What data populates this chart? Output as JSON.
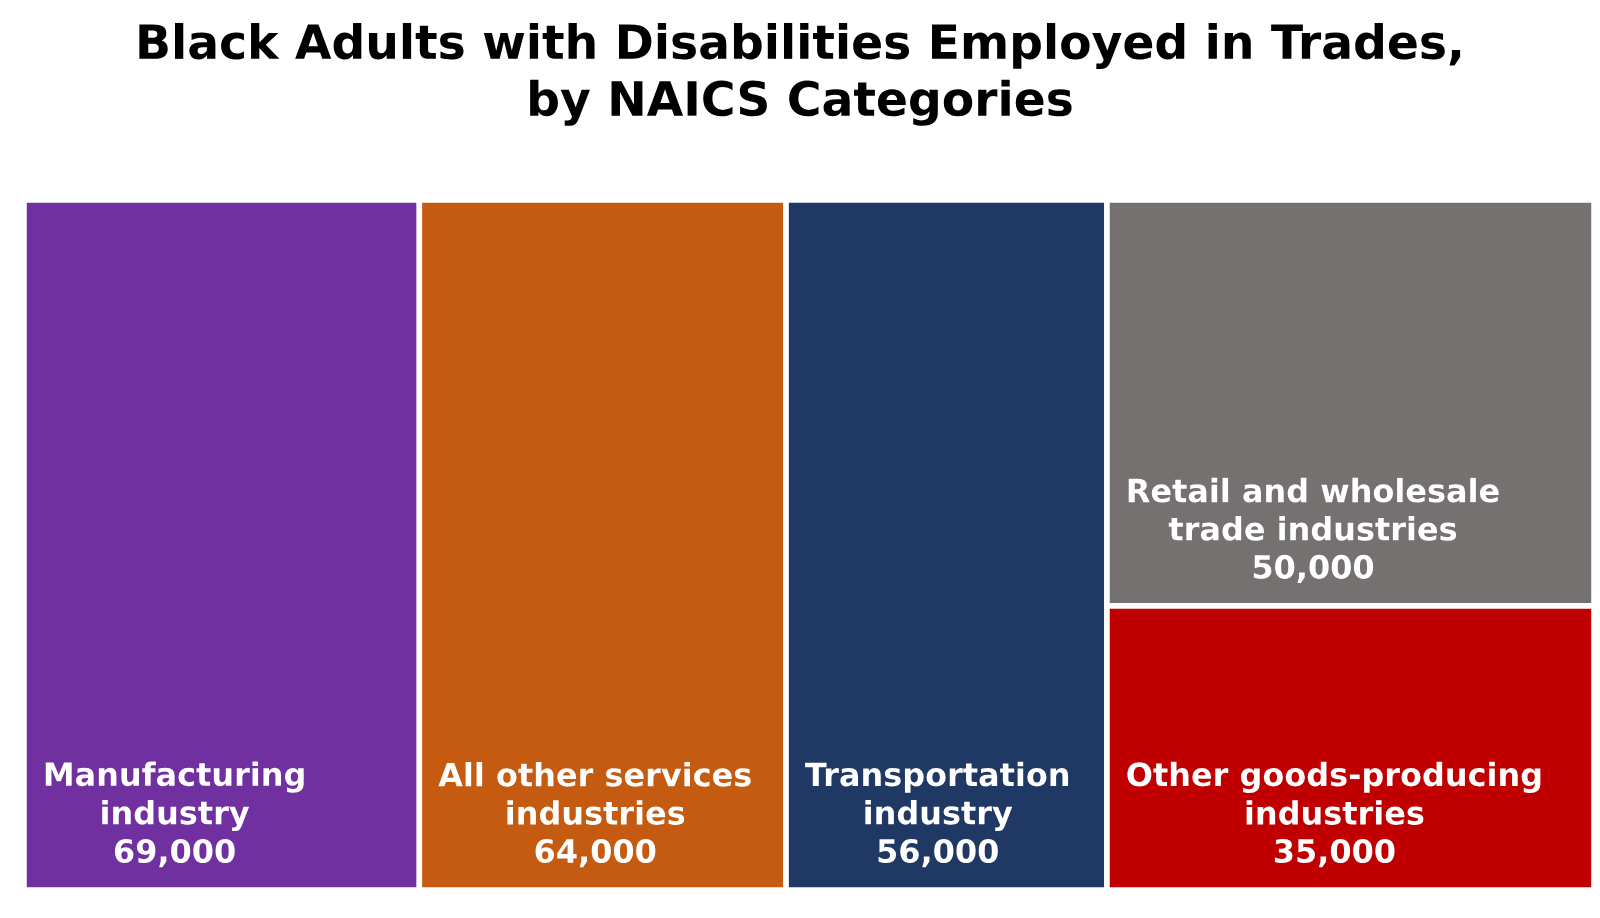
{
  "chart_data": {
    "type": "other",
    "title": "Black Adults with Disabilities Employed in Trades,\nby NAICS Categories",
    "categories": [
      "Manufacturing\nindustry",
      "All other services\nindustries",
      "Transportation\nindustry",
      "Retail and wholesale\ntrade industries",
      "Other goods-producing\nindustries"
    ],
    "values": [
      69000,
      64000,
      56000,
      50000,
      35000
    ],
    "value_labels": [
      "69,000",
      "64,000",
      "56,000",
      "50,000",
      "35,000"
    ],
    "colors": [
      "#7030a0",
      "#c55a11",
      "#203864",
      "#767171",
      "#c00000"
    ]
  }
}
